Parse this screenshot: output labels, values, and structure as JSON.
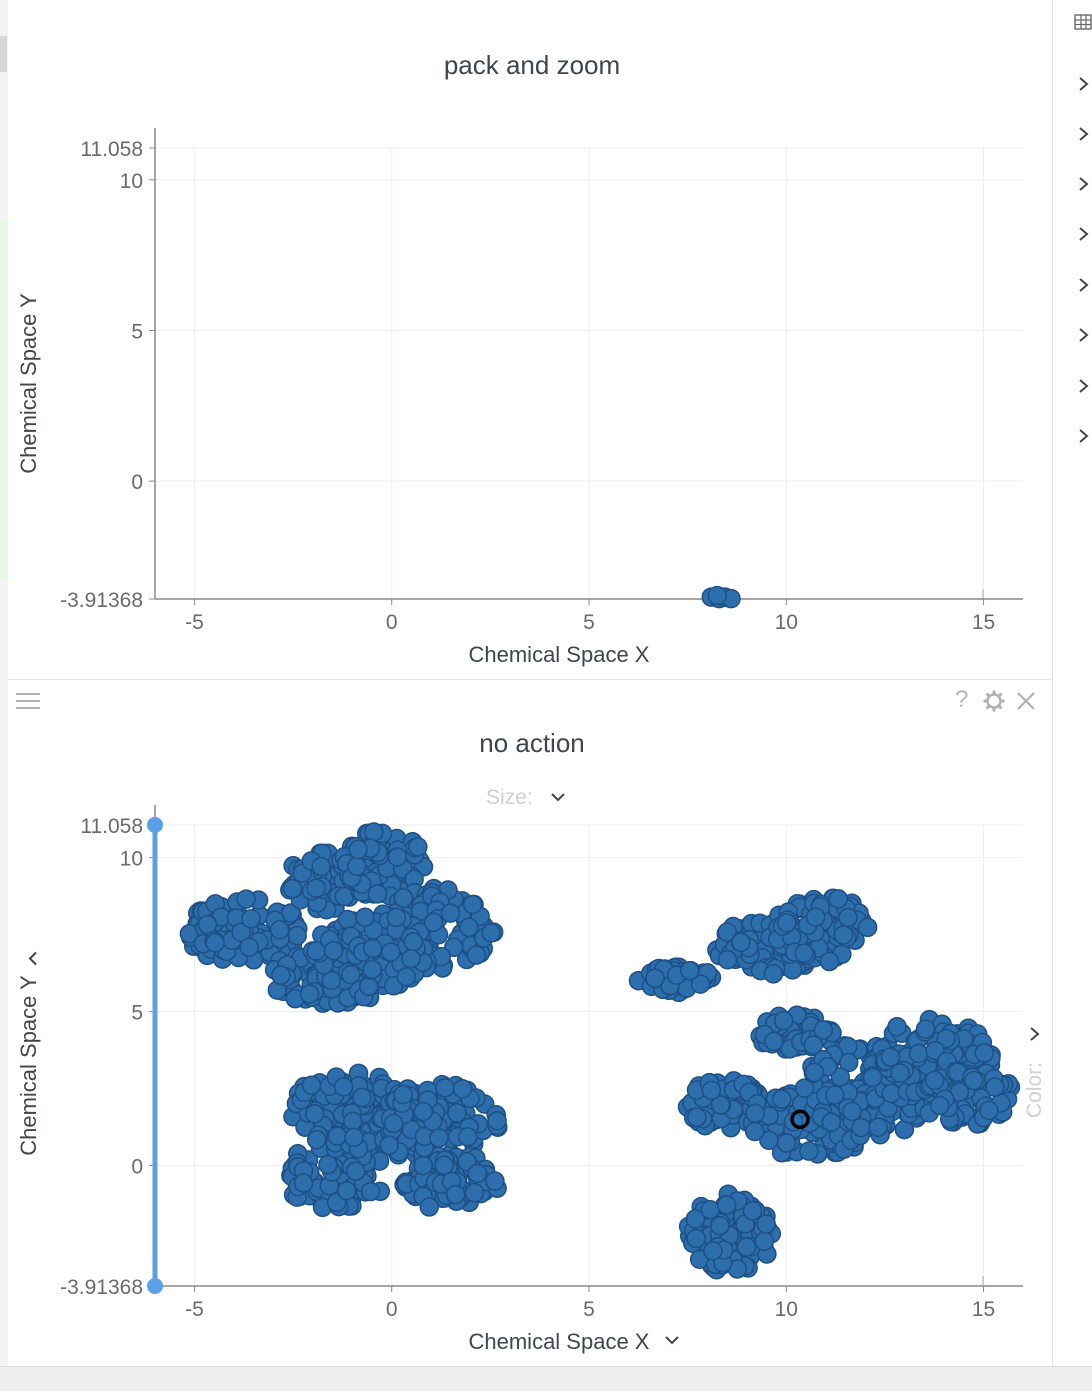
{
  "theme": {
    "point_fill": "#2d6ead",
    "point_stroke": "#1e4f85",
    "range_slider": "#5aa0e6",
    "grid": "#eeeeee",
    "axis": "#888888",
    "selected_point_stroke": "#000000"
  },
  "icons": {
    "menu": "hamburger-icon",
    "help": "?",
    "settings": "gear-icon",
    "close": "close-icon",
    "dropdown": "chevron-down-icon",
    "expand": "chevron-right-icon",
    "table": "table-grid-icon"
  },
  "controls": {
    "size_label": "Size:",
    "color_label": "Color:"
  },
  "chart_data": [
    {
      "type": "scatter",
      "title": "pack and zoom",
      "xlabel": "Chemical Space X",
      "ylabel": "Chemical Space Y",
      "xticks": [
        "-5",
        "0",
        "5",
        "10",
        "15"
      ],
      "yticks": [
        "11.058",
        "10",
        "5",
        "0",
        "-3.91368"
      ],
      "xlim": [
        -6,
        16
      ],
      "ylim": [
        -3.91368,
        11.058
      ],
      "grid": true,
      "points": [
        {
          "x": 8.1,
          "y": -3.85
        },
        {
          "x": 8.3,
          "y": -3.9
        },
        {
          "x": 8.45,
          "y": -3.85
        },
        {
          "x": 8.6,
          "y": -3.9
        },
        {
          "x": 8.25,
          "y": -3.8
        }
      ]
    },
    {
      "type": "scatter",
      "title": "no action",
      "xlabel": "Chemical Space X",
      "ylabel": "Chemical Space Y",
      "xticks": [
        "-5",
        "0",
        "5",
        "10",
        "15"
      ],
      "yticks": [
        "11.058",
        "10",
        "5",
        "0",
        "-3.91368"
      ],
      "xlim": [
        -6,
        16
      ],
      "ylim": [
        -3.91368,
        11.058
      ],
      "grid": true,
      "selected_point": {
        "x": 10.35,
        "y": 1.5
      },
      "clusters": [
        {
          "cx": -3.7,
          "cy": 7.6,
          "rx": 1.5,
          "ry": 1.1,
          "n": 90
        },
        {
          "cx": -1.6,
          "cy": 6.1,
          "rx": 1.6,
          "ry": 0.9,
          "n": 90
        },
        {
          "cx": -1.7,
          "cy": 9.3,
          "rx": 1.0,
          "ry": 1.0,
          "n": 70
        },
        {
          "cx": -0.2,
          "cy": 9.8,
          "rx": 1.1,
          "ry": 1.1,
          "n": 80
        },
        {
          "cx": 1.2,
          "cy": 7.7,
          "rx": 1.4,
          "ry": 1.3,
          "n": 90
        },
        {
          "cx": -0.5,
          "cy": 6.9,
          "rx": 1.5,
          "ry": 1.3,
          "n": 90
        },
        {
          "cx": -1.0,
          "cy": 1.8,
          "rx": 1.6,
          "ry": 1.2,
          "n": 110
        },
        {
          "cx": -1.4,
          "cy": -0.2,
          "rx": 1.4,
          "ry": 1.2,
          "n": 90
        },
        {
          "cx": 1.2,
          "cy": 1.3,
          "rx": 1.5,
          "ry": 1.4,
          "n": 110
        },
        {
          "cx": 1.4,
          "cy": -0.6,
          "rx": 1.3,
          "ry": 0.8,
          "n": 70
        },
        {
          "cx": 7.2,
          "cy": 6.0,
          "rx": 1.0,
          "ry": 0.45,
          "n": 45
        },
        {
          "cx": 9.5,
          "cy": 7.1,
          "rx": 1.3,
          "ry": 0.9,
          "n": 80
        },
        {
          "cx": 10.9,
          "cy": 7.7,
          "rx": 1.2,
          "ry": 1.1,
          "n": 80
        },
        {
          "cx": 8.4,
          "cy": 2.0,
          "rx": 1.0,
          "ry": 0.8,
          "n": 60
        },
        {
          "cx": 10.2,
          "cy": 4.3,
          "rx": 1.0,
          "ry": 0.6,
          "n": 50
        },
        {
          "cx": 10.6,
          "cy": 1.3,
          "rx": 1.5,
          "ry": 1.1,
          "n": 100
        },
        {
          "cx": 12.0,
          "cy": 2.4,
          "rx": 1.6,
          "ry": 1.6,
          "n": 130
        },
        {
          "cx": 13.7,
          "cy": 3.3,
          "rx": 1.6,
          "ry": 1.5,
          "n": 120
        },
        {
          "cx": 14.6,
          "cy": 2.2,
          "rx": 1.2,
          "ry": 0.9,
          "n": 70
        },
        {
          "cx": 8.6,
          "cy": -2.2,
          "rx": 1.1,
          "ry": 1.3,
          "n": 90
        }
      ]
    }
  ]
}
